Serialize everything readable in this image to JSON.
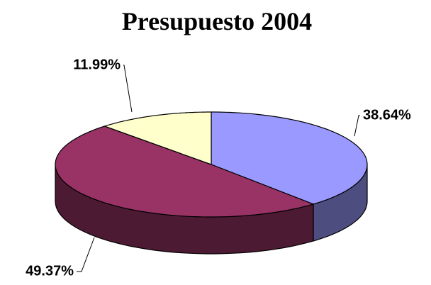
{
  "chart_data": {
    "type": "pie",
    "title": "Presupuesto 2004",
    "values": [
      38.64,
      49.37,
      11.99
    ],
    "value_labels": [
      "38.64%",
      "49.37%",
      "11.99%"
    ],
    "colors": [
      "#9999ff",
      "#993366",
      "#ffffcc"
    ]
  }
}
